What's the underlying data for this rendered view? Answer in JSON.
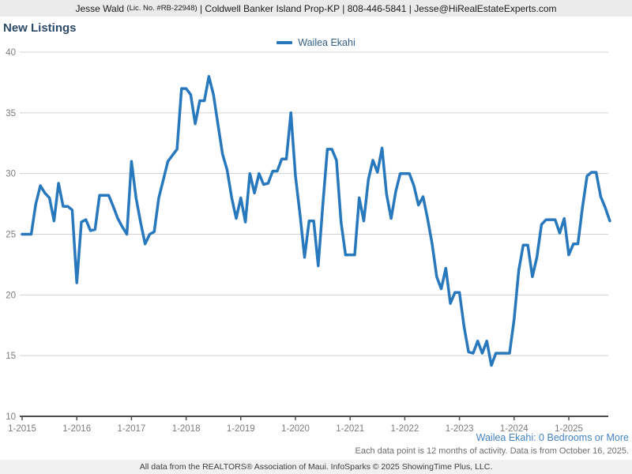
{
  "header": {
    "agent": "Jesse Wald ",
    "license": "(Lic. No. #RB-22948)",
    "details": " | Coldwell Banker Island Prop-KP | 808-446-5841 | Jesse@HiRealEstateExperts.com"
  },
  "title": "New Listings",
  "legend": {
    "label": "Wailea Ekahi",
    "color": "#2878bd"
  },
  "chart_data": {
    "type": "line",
    "title": "New Listings",
    "x_tick_labels": [
      "1-2015",
      "1-2016",
      "1-2017",
      "1-2018",
      "1-2019",
      "1-2020",
      "1-2021",
      "1-2022",
      "1-2023",
      "1-2024",
      "1-2025"
    ],
    "y_ticks": [
      10,
      15,
      20,
      25,
      30,
      35,
      40
    ],
    "ylim": [
      10,
      40
    ],
    "grid": true,
    "legend_position": "top-center",
    "x_start": "1-2015",
    "x_end": "10-2025",
    "points_per_year": 12,
    "series": [
      {
        "name": "Wailea Ekahi",
        "color": "#2878bd",
        "values": [
          25,
          25,
          25,
          27.5,
          29,
          28.4,
          28,
          26.1,
          29.2,
          27.3,
          27.3,
          27,
          21,
          26,
          26.2,
          25.3,
          25.4,
          28.2,
          28.2,
          28.2,
          27.3,
          26.3,
          25.6,
          25,
          31,
          28,
          26,
          24.2,
          25,
          25.2,
          28,
          29.5,
          31,
          31.5,
          32,
          37,
          37,
          36.5,
          34.1,
          36,
          36,
          38,
          36.5,
          34,
          31.6,
          30.3,
          28,
          26.3,
          28,
          26,
          30,
          28.4,
          30,
          29.1,
          29.2,
          30.2,
          30.2,
          31.2,
          31.2,
          35,
          29.8,
          26.6,
          23.1,
          26.1,
          26.1,
          22.4,
          27.4,
          32,
          32,
          31.1,
          26,
          23.3,
          23.3,
          23.3,
          28,
          26.1,
          29.5,
          31.1,
          30.1,
          32.1,
          28.3,
          26.3,
          28.5,
          30,
          30,
          30,
          29,
          27.4,
          28.1,
          26.3,
          24.2,
          21.5,
          20.5,
          22.2,
          19.3,
          20.2,
          20.2,
          17.4,
          15.3,
          15.2,
          16.2,
          15.2,
          16.2,
          14.2,
          15.2,
          15.2,
          15.2,
          15.2,
          18,
          22,
          24.1,
          24.1,
          21.5,
          23.1,
          25.8,
          26.2,
          26.2,
          26.2,
          25.1,
          26.3,
          23.3,
          24.2,
          24.2,
          27.2,
          29.8,
          30.1,
          30.1,
          28.1,
          27.2,
          26.1
        ]
      }
    ]
  },
  "footnotes": {
    "series_filter": "Wailea Ekahi: 0 Bedrooms or More",
    "data_note": "Each data point is 12 months of activity. Data is from October 16, 2025."
  },
  "footer": "All data from the REALTORS® Association of Maui. InfoSparks © 2025 ShowingTime Plus, LLC."
}
